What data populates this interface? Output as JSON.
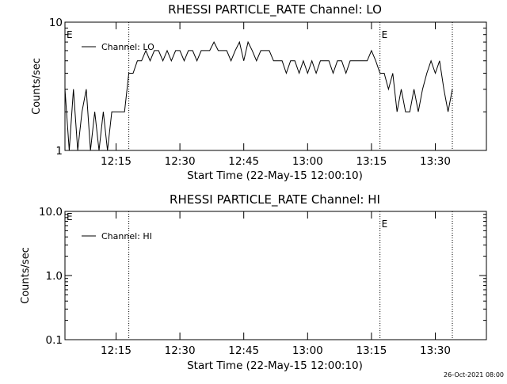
{
  "footer_stamp": "26-Oct-2021 08:00",
  "chart_data": [
    {
      "type": "line",
      "title": "RHESSI PARTICLE_RATE Channel: LO",
      "xlabel": "Start Time (22-May-15 12:00:10)",
      "ylabel": "Counts/sec",
      "yscale": "log",
      "ylim": [
        1,
        10
      ],
      "xlim": [
        "12:03",
        "13:42"
      ],
      "grid": false,
      "legend_position": "top-left",
      "x_ticks": [
        "12:15",
        "12:30",
        "12:45",
        "13:00",
        "13:15",
        "13:30"
      ],
      "y_ticks": [
        "1",
        "10"
      ],
      "vertical_markers": [
        {
          "time": "12:18",
          "label": ""
        },
        {
          "time": "13:17",
          "label": "E"
        },
        {
          "time": "13:34",
          "label": ""
        }
      ],
      "left_edge_label": "E",
      "series": [
        {
          "name": "Channel: LO",
          "x": [
            "12:03",
            "12:04",
            "12:05",
            "12:06",
            "12:07",
            "12:08",
            "12:09",
            "12:10",
            "12:11",
            "12:12",
            "12:13",
            "12:14",
            "12:15",
            "12:16",
            "12:17",
            "12:18",
            "12:19",
            "12:20",
            "12:21",
            "12:22",
            "12:23",
            "12:24",
            "12:25",
            "12:26",
            "12:27",
            "12:28",
            "12:29",
            "12:30",
            "12:31",
            "12:32",
            "12:33",
            "12:34",
            "12:35",
            "12:36",
            "12:37",
            "12:38",
            "12:39",
            "12:40",
            "12:41",
            "12:42",
            "12:43",
            "12:44",
            "12:45",
            "12:46",
            "12:47",
            "12:48",
            "12:49",
            "12:50",
            "12:51",
            "12:52",
            "12:53",
            "12:54",
            "12:55",
            "12:56",
            "12:57",
            "12:58",
            "12:59",
            "13:00",
            "13:01",
            "13:02",
            "13:03",
            "13:04",
            "13:05",
            "13:06",
            "13:07",
            "13:08",
            "13:09",
            "13:10",
            "13:11",
            "13:12",
            "13:13",
            "13:14",
            "13:15",
            "13:16",
            "13:17",
            "13:18",
            "13:19",
            "13:20",
            "13:21",
            "13:22",
            "13:23",
            "13:24",
            "13:25",
            "13:26",
            "13:27",
            "13:28",
            "13:29",
            "13:30",
            "13:31",
            "13:32",
            "13:33",
            "13:34"
          ],
          "y": [
            3,
            1,
            3,
            1,
            2,
            3,
            1,
            2,
            1,
            2,
            1,
            2,
            2,
            2,
            2,
            4,
            4,
            5,
            5,
            6,
            5,
            6,
            6,
            5,
            6,
            5,
            6,
            6,
            5,
            6,
            6,
            5,
            6,
            6,
            6,
            7,
            6,
            6,
            6,
            5,
            6,
            7,
            5,
            7,
            6,
            5,
            6,
            6,
            6,
            5,
            5,
            5,
            4,
            5,
            5,
            4,
            5,
            4,
            5,
            4,
            5,
            5,
            5,
            4,
            5,
            5,
            4,
            5,
            5,
            5,
            5,
            5,
            6,
            5,
            4,
            4,
            3,
            4,
            2,
            3,
            2,
            2,
            3,
            2,
            3,
            4,
            5,
            4,
            5,
            3,
            2,
            3
          ]
        }
      ]
    },
    {
      "type": "line",
      "title": "RHESSI PARTICLE_RATE Channel: HI",
      "xlabel": "Start Time (22-May-15 12:00:10)",
      "ylabel": "Counts/sec",
      "yscale": "log",
      "ylim": [
        0.1,
        10
      ],
      "xlim": [
        "12:03",
        "13:42"
      ],
      "grid": false,
      "legend_position": "top-left",
      "x_ticks": [
        "12:15",
        "12:30",
        "12:45",
        "13:00",
        "13:15",
        "13:30"
      ],
      "y_ticks": [
        "0.1",
        "1.0",
        "10.0"
      ],
      "vertical_markers": [
        {
          "time": "12:18",
          "label": ""
        },
        {
          "time": "13:17",
          "label": "E"
        },
        {
          "time": "13:34",
          "label": ""
        }
      ],
      "left_edge_label": "E",
      "series": [
        {
          "name": "Channel: HI",
          "x": [],
          "y": []
        }
      ]
    }
  ]
}
